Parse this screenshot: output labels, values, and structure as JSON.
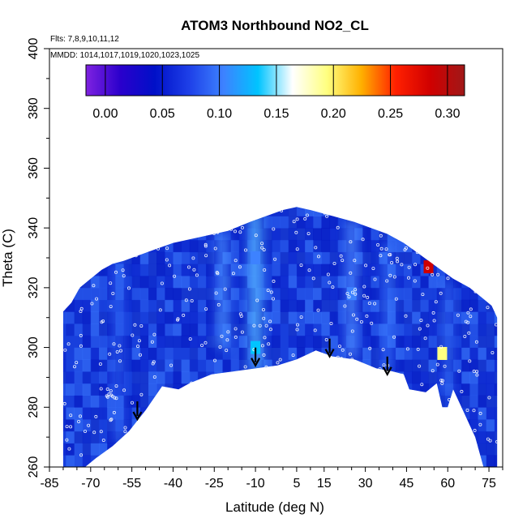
{
  "chart_data": {
    "type": "heatmap",
    "title": "ATOM3 Northbound NO2_CL",
    "annotations": [
      "Flts: 7,8,9,10,11,12",
      "MMDD: 1014,1017,1019,1020,1023,1025"
    ],
    "xlabel": "Latitude (deg N)",
    "ylabel": "Theta (C)",
    "xlim": [
      -85,
      80
    ],
    "ylim": [
      260,
      400
    ],
    "x_ticks": [
      "-85",
      "-70",
      "-55",
      "-40",
      "-25",
      "-10",
      "5",
      "15",
      "30",
      "45",
      "60",
      "75"
    ],
    "x_tick_values": [
      -85,
      -70,
      -55,
      -40,
      -25,
      -10,
      5,
      15,
      30,
      45,
      60,
      75
    ],
    "y_ticks": [
      "260",
      "280",
      "300",
      "320",
      "340",
      "360",
      "380",
      "400"
    ],
    "y_tick_values": [
      260,
      280,
      300,
      320,
      340,
      360,
      380,
      400
    ],
    "colorbar": {
      "ticks": [
        "0.00",
        "0.05",
        "0.10",
        "0.15",
        "0.20",
        "0.25",
        "0.30"
      ],
      "tick_values": [
        0,
        0.05,
        0.1,
        0.15,
        0.2,
        0.25,
        0.3
      ],
      "range": [
        -0.017,
        0.315
      ],
      "colors": [
        "#7f22e0",
        "#2a00cc",
        "#0010c8",
        "#1e40e8",
        "#3d82ff",
        "#00c4ff",
        "#ffffff",
        "#ffff80",
        "#ffb000",
        "#ff2000",
        "#d00000",
        "#a01818"
      ]
    },
    "data_boundary": [
      [
        -80,
        312
      ],
      [
        -77,
        315
      ],
      [
        -74,
        320
      ],
      [
        -70,
        323
      ],
      [
        -66,
        326
      ],
      [
        -62,
        328
      ],
      [
        -58,
        329
      ],
      [
        -52,
        331
      ],
      [
        -46,
        333
      ],
      [
        -40,
        335
      ],
      [
        -30,
        337
      ],
      [
        -20,
        339
      ],
      [
        -12,
        342
      ],
      [
        -6,
        344
      ],
      [
        0,
        346
      ],
      [
        5,
        347
      ],
      [
        10,
        346
      ],
      [
        18,
        344
      ],
      [
        26,
        342
      ],
      [
        32,
        340
      ],
      [
        38,
        338
      ],
      [
        44,
        335
      ],
      [
        50,
        331
      ],
      [
        56,
        327
      ],
      [
        62,
        323
      ],
      [
        68,
        320
      ],
      [
        72,
        317
      ],
      [
        76,
        314
      ],
      [
        78,
        310
      ],
      [
        78,
        260
      ],
      [
        73,
        260
      ],
      [
        70,
        270
      ],
      [
        66,
        278
      ],
      [
        62,
        286
      ],
      [
        60,
        280
      ],
      [
        58,
        280
      ],
      [
        56,
        288
      ],
      [
        52,
        285
      ],
      [
        46,
        286
      ],
      [
        44,
        291
      ],
      [
        40,
        292
      ],
      [
        34,
        293
      ],
      [
        26,
        296
      ],
      [
        18,
        297
      ],
      [
        12,
        299
      ],
      [
        5,
        296
      ],
      [
        -2,
        294
      ],
      [
        -10,
        293
      ],
      [
        -18,
        292
      ],
      [
        -26,
        291
      ],
      [
        -34,
        288
      ],
      [
        -38,
        286
      ],
      [
        -44,
        287
      ],
      [
        -50,
        279
      ],
      [
        -56,
        272
      ],
      [
        -62,
        267
      ],
      [
        -68,
        263
      ],
      [
        -72,
        260
      ],
      [
        -80,
        260
      ]
    ],
    "high_values": [
      {
        "lat": 53,
        "theta": 327,
        "value": 0.28
      },
      {
        "lat": 58,
        "theta": 298,
        "value": 0.2
      },
      {
        "lat": -10,
        "theta": 300,
        "value": 0.13
      },
      {
        "lat": -10,
        "theta": 330,
        "value": 0.11
      },
      {
        "lat": 25,
        "theta": 318,
        "value": 0.09
      }
    ],
    "arrows": [
      {
        "lat": -53,
        "theta": 276
      },
      {
        "lat": -10,
        "theta": 294
      },
      {
        "lat": 17,
        "theta": 297
      },
      {
        "lat": 38,
        "theta": 291
      }
    ]
  }
}
